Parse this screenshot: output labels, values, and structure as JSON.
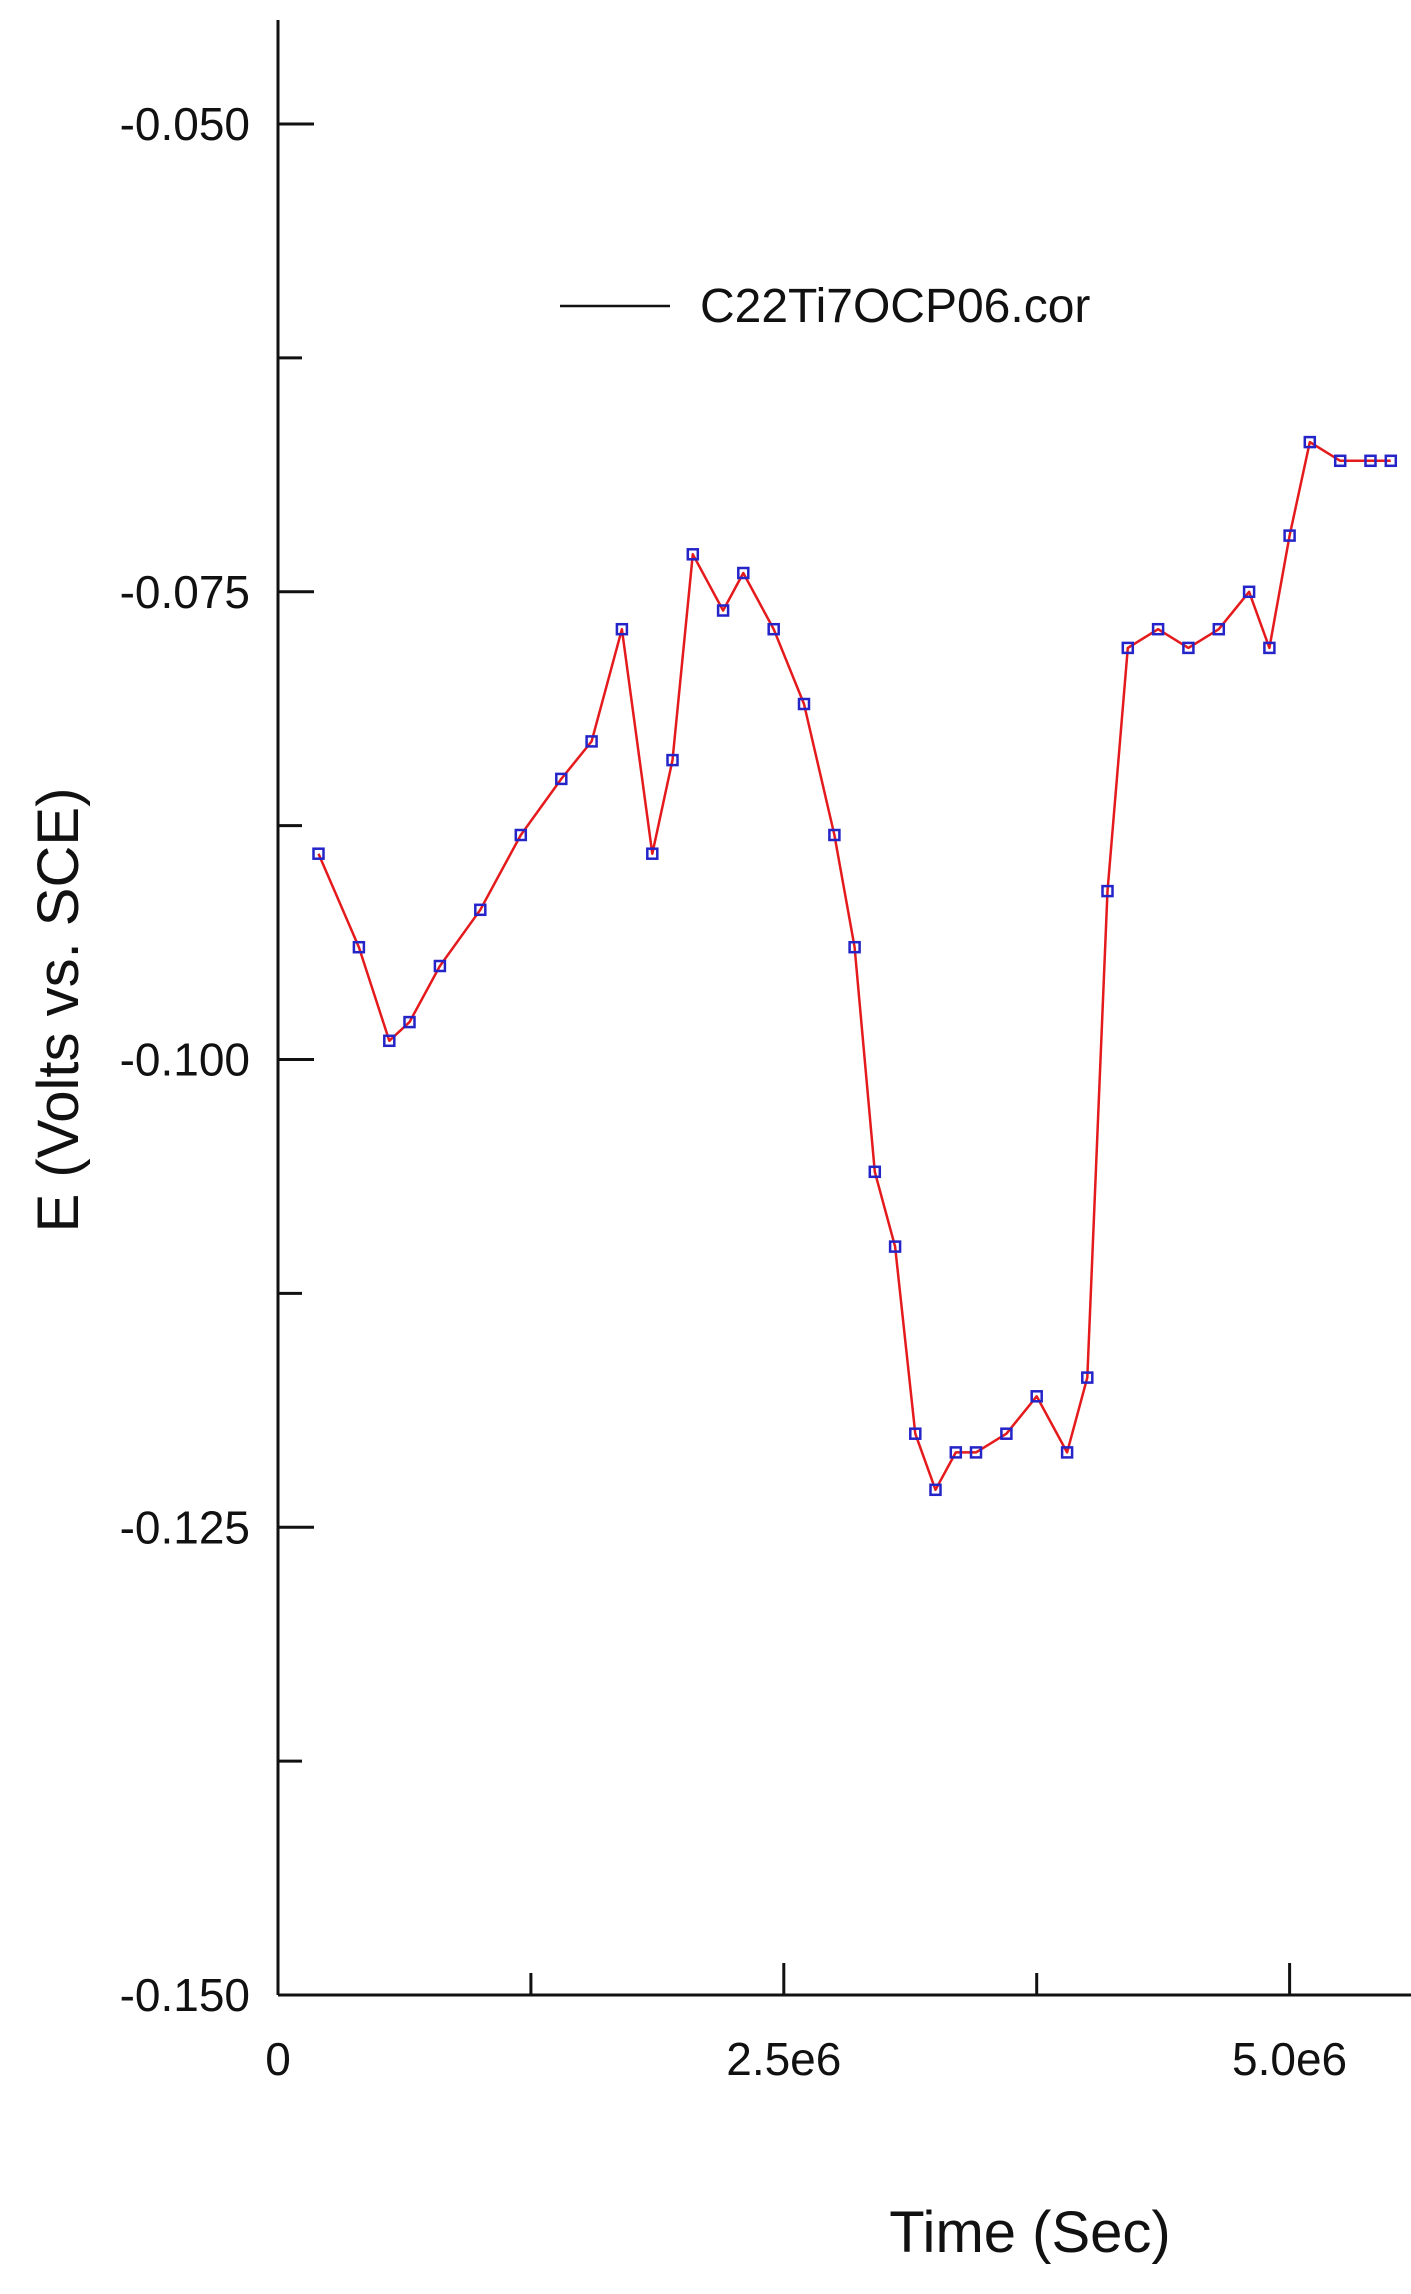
{
  "chart_data": {
    "type": "line",
    "title": "",
    "xlabel": "Time (Sec)",
    "ylabel": "E (Volts vs. SCE)",
    "xlim": [
      0,
      5600000
    ],
    "ylim": [
      -0.15,
      -0.045
    ],
    "x_ticks": [
      0,
      2500000,
      5000000
    ],
    "x_tick_labels": [
      "0",
      "2.5e6",
      "5.0e6"
    ],
    "x_minor_ticks": [
      1250000,
      3750000
    ],
    "y_ticks": [
      -0.05,
      -0.075,
      -0.1,
      -0.125,
      -0.15
    ],
    "y_tick_labels": [
      "-0.050",
      "-0.075",
      "-0.100",
      "-0.125",
      "-0.150"
    ],
    "y_minor_ticks": [
      -0.0625,
      -0.0875,
      -0.1125,
      -0.1375
    ],
    "grid": false,
    "legend": {
      "position": "top-center"
    },
    "colors": {
      "line": "#e41a1c",
      "marker": "#2424c8",
      "axis": "#111111"
    },
    "series": [
      {
        "name": "C22Ti7OCP06.cor",
        "x": [
          200000,
          400000,
          550000,
          650000,
          800000,
          1000000,
          1200000,
          1400000,
          1550000,
          1700000,
          1850000,
          1950000,
          2050000,
          2200000,
          2300000,
          2450000,
          2600000,
          2750000,
          2850000,
          2950000,
          3050000,
          3150000,
          3250000,
          3350000,
          3450000,
          3600000,
          3750000,
          3900000,
          4000000,
          4100000,
          4200000,
          4350000,
          4500000,
          4650000,
          4800000,
          4900000,
          5000000,
          5100000,
          5250000,
          5400000,
          5500000
        ],
        "y": [
          -0.089,
          -0.094,
          -0.099,
          -0.098,
          -0.095,
          -0.092,
          -0.088,
          -0.085,
          -0.083,
          -0.077,
          -0.089,
          -0.084,
          -0.073,
          -0.076,
          -0.074,
          -0.077,
          -0.081,
          -0.088,
          -0.094,
          -0.106,
          -0.11,
          -0.12,
          -0.123,
          -0.121,
          -0.121,
          -0.12,
          -0.118,
          -0.121,
          -0.117,
          -0.091,
          -0.078,
          -0.077,
          -0.078,
          -0.077,
          -0.075,
          -0.078,
          -0.072,
          -0.067,
          -0.068,
          -0.068,
          -0.068
        ]
      }
    ]
  }
}
